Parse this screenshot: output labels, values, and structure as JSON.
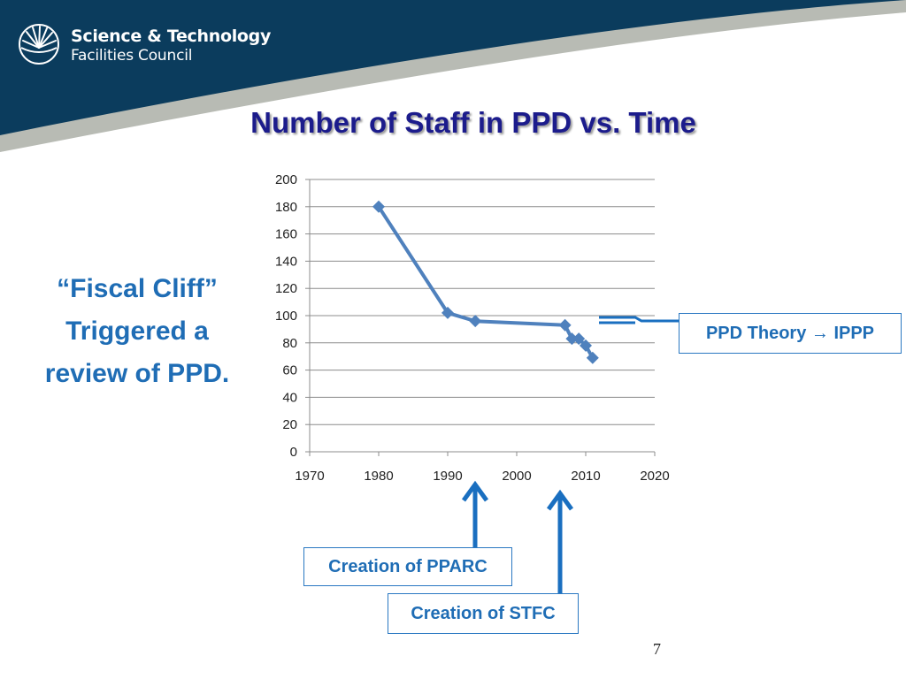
{
  "header": {
    "logo_line1": "Science & Technology",
    "logo_line2": "Facilities Council",
    "banner_color": "#0b3c5d",
    "stripe_color": "#b8bbb4"
  },
  "slide": {
    "title": "Number of Staff in PPD vs. Time",
    "callout": [
      "“Fiscal Cliff”",
      "Triggered a",
      "review of PPD."
    ],
    "page_number": "7"
  },
  "annotations": {
    "theory": "PPD Theory → IPPP",
    "pparc": "Creation of PPARC",
    "stfc": "Creation of STFC",
    "arrow_color": "#1a6fc0"
  },
  "chart_data": {
    "type": "line",
    "title": "",
    "xlabel": "",
    "ylabel": "",
    "xlim": [
      1970,
      2020
    ],
    "ylim": [
      0,
      200
    ],
    "xticks": [
      1970,
      1980,
      1990,
      2000,
      2010,
      2020
    ],
    "yticks": [
      0,
      20,
      40,
      60,
      80,
      100,
      120,
      140,
      160,
      180,
      200
    ],
    "grid": "horizontal",
    "series": [
      {
        "color": "#4f81bd",
        "marker": "diamond",
        "x": [
          1980,
          1990,
          1994,
          2007,
          2008,
          2009,
          2010,
          2011
        ],
        "y": [
          180,
          102,
          96,
          93,
          83,
          83,
          78,
          69
        ]
      }
    ]
  }
}
